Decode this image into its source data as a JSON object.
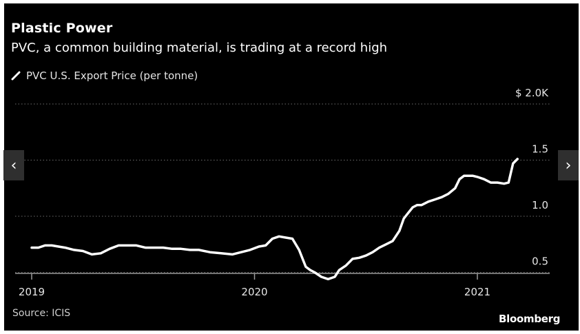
{
  "header": {
    "title": "Plastic Power",
    "subtitle": "PVC, a common building material, is trading at a record high"
  },
  "legend": {
    "label": "PVC U.S. Export Price (per tonne)",
    "icon": "line-swatch-icon"
  },
  "source": "Source: ICIS",
  "brand": "Bloomberg",
  "nav": {
    "prev_glyph": "‹",
    "next_glyph": "›"
  },
  "colors": {
    "background": "#000000",
    "line": "#ffffff",
    "grid": "#6e6e6e",
    "text": "#ffffff",
    "nav": "#2f2f2f"
  },
  "chart_data": {
    "type": "line",
    "title": "Plastic Power",
    "subtitle": "PVC, a common building material, is trading at a record high",
    "xlabel": "",
    "ylabel": "",
    "x_ticks": [
      "2019",
      "2020",
      "2021"
    ],
    "y_ticks": [
      "$ 2.0K",
      "1.5",
      "1.0",
      "0.5"
    ],
    "y_tick_values": [
      2.0,
      1.5,
      1.0,
      0.5
    ],
    "ylim": [
      0.4,
      2.0
    ],
    "xlim": [
      2019.0,
      2021.33
    ],
    "grid": "horizontal dotted",
    "legend_position": "top-left",
    "series": [
      {
        "name": "PVC U.S. Export Price (per tonne)",
        "x": [
          2019.0,
          2019.03,
          2019.06,
          2019.09,
          2019.12,
          2019.15,
          2019.19,
          2019.23,
          2019.27,
          2019.31,
          2019.35,
          2019.39,
          2019.43,
          2019.47,
          2019.51,
          2019.55,
          2019.59,
          2019.63,
          2019.67,
          2019.71,
          2019.75,
          2019.8,
          2019.85,
          2019.9,
          2019.94,
          2019.98,
          2020.02,
          2020.05,
          2020.08,
          2020.11,
          2020.14,
          2020.17,
          2020.2,
          2020.23,
          2020.25,
          2020.27,
          2020.3,
          2020.33,
          2020.36,
          2020.38,
          2020.41,
          2020.44,
          2020.47,
          2020.5,
          2020.53,
          2020.56,
          2020.59,
          2020.62,
          2020.65,
          2020.67,
          2020.69,
          2020.71,
          2020.73,
          2020.75,
          2020.78,
          2020.81,
          2020.84,
          2020.87,
          2020.9,
          2020.92,
          2020.94,
          2020.96,
          2020.98,
          2021.0,
          2021.03,
          2021.06,
          2021.09,
          2021.12,
          2021.14,
          2021.16,
          2021.18
        ],
        "y": [
          0.72,
          0.72,
          0.74,
          0.74,
          0.73,
          0.72,
          0.7,
          0.69,
          0.66,
          0.67,
          0.71,
          0.74,
          0.74,
          0.74,
          0.72,
          0.72,
          0.72,
          0.71,
          0.71,
          0.7,
          0.7,
          0.68,
          0.67,
          0.66,
          0.68,
          0.7,
          0.73,
          0.74,
          0.8,
          0.82,
          0.81,
          0.8,
          0.7,
          0.55,
          0.52,
          0.5,
          0.46,
          0.44,
          0.46,
          0.52,
          0.56,
          0.62,
          0.63,
          0.65,
          0.68,
          0.72,
          0.75,
          0.78,
          0.87,
          0.98,
          1.03,
          1.08,
          1.1,
          1.1,
          1.13,
          1.15,
          1.17,
          1.2,
          1.25,
          1.33,
          1.36,
          1.36,
          1.36,
          1.35,
          1.33,
          1.3,
          1.3,
          1.29,
          1.3,
          1.47,
          1.51
        ]
      }
    ]
  }
}
